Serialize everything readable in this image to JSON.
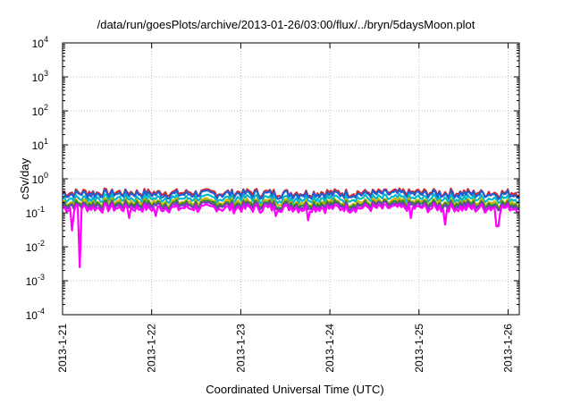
{
  "chart_data": {
    "type": "line",
    "title": "/data/run/goesPlots/archive/2013-01-26/03:00/flux/../bryn/5daysMoon.plot",
    "xlabel": "Coordinated Universal Time (UTC)",
    "ylabel": "cSv/day",
    "yscale": "log",
    "ylim": [
      0.0001,
      10000
    ],
    "xlim": [
      "2013-01-21 00:00",
      "2013-01-26 03:00"
    ],
    "grid": true,
    "legend": "none",
    "yticks": [
      {
        "base": "10",
        "exp": "-4",
        "value": 0.0001
      },
      {
        "base": "10",
        "exp": "-3",
        "value": 0.001
      },
      {
        "base": "10",
        "exp": "-2",
        "value": 0.01
      },
      {
        "base": "10",
        "exp": "-1",
        "value": 0.1
      },
      {
        "base": "10",
        "exp": "0",
        "value": 1
      },
      {
        "base": "10",
        "exp": "1",
        "value": 10
      },
      {
        "base": "10",
        "exp": "2",
        "value": 100
      },
      {
        "base": "10",
        "exp": "3",
        "value": 1000
      },
      {
        "base": "10",
        "exp": "4",
        "value": 10000
      }
    ],
    "xticks": [
      {
        "label": "2013-1-21",
        "day": 0
      },
      {
        "label": "2013-1-22",
        "day": 1
      },
      {
        "label": "2013-1-23",
        "day": 2
      },
      {
        "label": "2013-1-24",
        "day": 3
      },
      {
        "label": "2013-1-25",
        "day": 4
      },
      {
        "label": "2013-1-26",
        "day": 5
      }
    ],
    "series": [
      {
        "color": "#d62728",
        "level": 0.4
      },
      {
        "color": "#1f5fd6",
        "level": 0.36
      },
      {
        "color": "#00b7c7",
        "level": 0.27
      },
      {
        "color": "#c8b400",
        "level": 0.21
      },
      {
        "color": "#2d8a2d",
        "level": 0.185
      },
      {
        "color": "#7a3db8",
        "level": 0.165
      },
      {
        "color": "#ff00ff",
        "level": 0.14,
        "dips": [
          {
            "day": 0.1,
            "value": 0.03
          },
          {
            "day": 0.2,
            "value": 0.0025
          },
          {
            "day": 0.75,
            "value": 0.07
          },
          {
            "day": 1.05,
            "value": 0.08
          },
          {
            "day": 2.4,
            "value": 0.08
          },
          {
            "day": 2.75,
            "value": 0.06
          },
          {
            "day": 3.9,
            "value": 0.07
          },
          {
            "day": 4.3,
            "value": 0.045
          },
          {
            "day": 4.88,
            "value": 0.04
          }
        ]
      }
    ]
  }
}
